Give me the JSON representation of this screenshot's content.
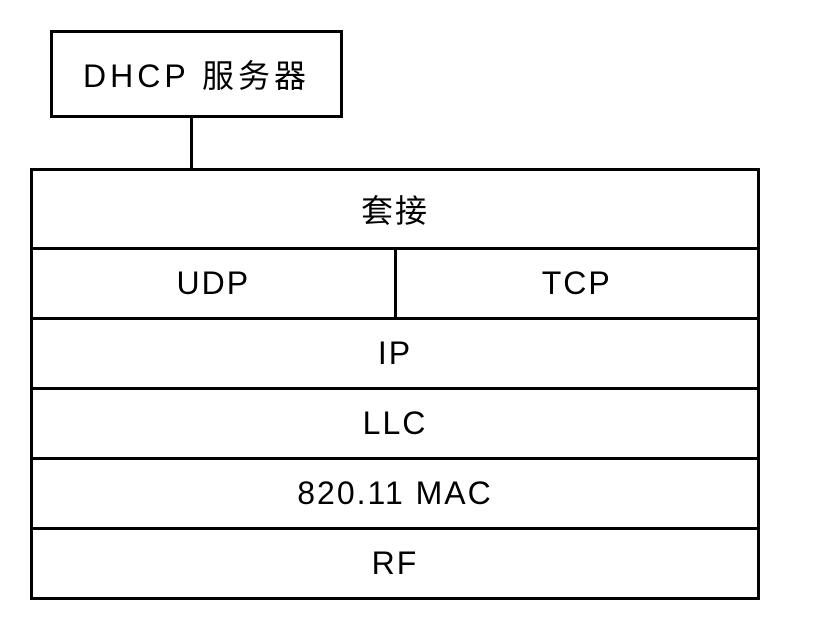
{
  "diagram": {
    "top_box_label": "DHCP 服务器",
    "stack": {
      "row1": "套接",
      "row2_left": "UDP",
      "row2_right": "TCP",
      "row3": "IP",
      "row4": "LLC",
      "row5": "820.11 MAC",
      "row6": "RF"
    },
    "colors": {
      "border": "#000000",
      "background": "#ffffff",
      "text": "#000000"
    },
    "border_width": 3,
    "font_size": 32
  }
}
